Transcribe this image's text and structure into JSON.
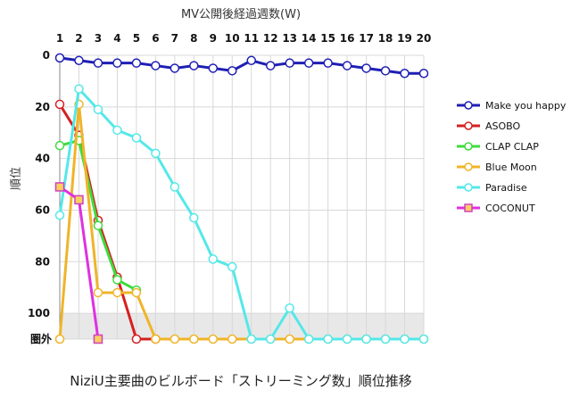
{
  "chart_data": {
    "type": "line",
    "title": "",
    "caption": "NiziU主要曲のビルボード「ストリーミング数」順位推移",
    "xlabel": "MV公開後経過週数(W)",
    "ylabel": "順位",
    "x": [
      1,
      2,
      3,
      4,
      5,
      6,
      7,
      8,
      9,
      10,
      11,
      12,
      13,
      14,
      15,
      16,
      17,
      18,
      19,
      20
    ],
    "xlim": [
      1,
      20
    ],
    "ylim": [
      0,
      110
    ],
    "y_inverted": true,
    "yticks": [
      "0",
      "20",
      "40",
      "60",
      "80",
      "100"
    ],
    "y_out_label": "圏外",
    "y_out_value": 110,
    "out_region_from": 100,
    "grid": true,
    "legend_position": "right",
    "series": [
      {
        "name": "Make you happy",
        "color": "#1f1fb4",
        "marker": "circle",
        "values": [
          1,
          2,
          3,
          3,
          3,
          4,
          5,
          4,
          5,
          6,
          2,
          4,
          3,
          3,
          3,
          4,
          5,
          6,
          7,
          7
        ]
      },
      {
        "name": "ASOBO",
        "color": "#d62020",
        "marker": "circle",
        "values": [
          19,
          31,
          64,
          86,
          110,
          110,
          null,
          null,
          null,
          null,
          null,
          null,
          null,
          null,
          null,
          null,
          null,
          null,
          null,
          null
        ]
      },
      {
        "name": "CLAP CLAP",
        "color": "#3ddc3d",
        "marker": "circle",
        "values": [
          35,
          33,
          66,
          87,
          91,
          null,
          null,
          null,
          null,
          null,
          null,
          null,
          null,
          null,
          null,
          null,
          null,
          null,
          null,
          null
        ]
      },
      {
        "name": "Blue Moon",
        "color": "#f0b429",
        "marker": "circle",
        "values": [
          110,
          19,
          92,
          92,
          92,
          110,
          110,
          110,
          110,
          110,
          110,
          110,
          110,
          110,
          110,
          110,
          110,
          110,
          110,
          110
        ]
      },
      {
        "name": "Paradise",
        "color": "#55e8e8",
        "marker": "circle",
        "values": [
          62,
          13,
          21,
          29,
          32,
          38,
          51,
          63,
          79,
          82,
          110,
          110,
          98,
          110,
          110,
          110,
          110,
          110,
          110,
          110
        ]
      },
      {
        "name": "COCONUT",
        "color": "#e030e0",
        "marker": "square",
        "marker_fill": "#f8d060",
        "marker_stroke": "#d040c0",
        "values": [
          51,
          56,
          110,
          null,
          null,
          null,
          null,
          null,
          null,
          null,
          null,
          null,
          null,
          null,
          null,
          null,
          null,
          null,
          null,
          null
        ]
      }
    ]
  }
}
